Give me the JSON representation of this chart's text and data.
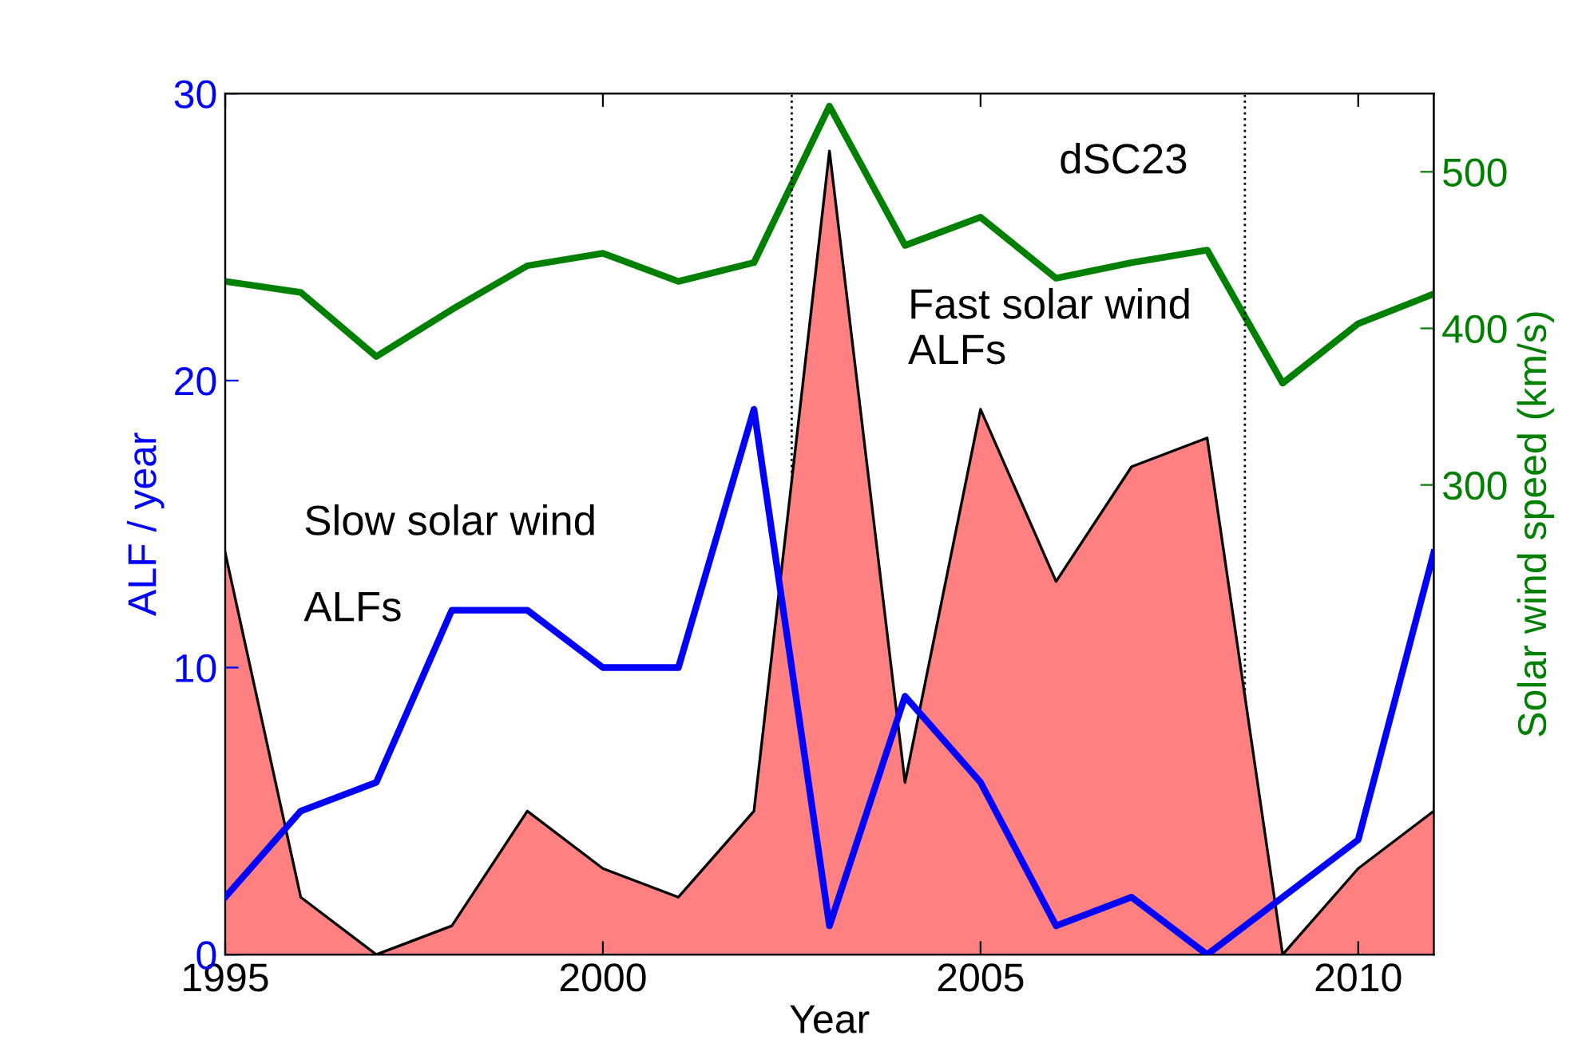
{
  "chart_data": {
    "type": "line",
    "xlabel": "Year",
    "ylabel": "ALF / year",
    "y2label": "Solar wind speed (km/s)",
    "x": [
      1995,
      1996,
      1997,
      1998,
      1999,
      2000,
      2001,
      2002,
      2003,
      2004,
      2005,
      2006,
      2007,
      2008,
      2009,
      2010,
      2011
    ],
    "xlim": [
      1995,
      2011
    ],
    "xticks": [
      1995,
      2000,
      2005,
      2010
    ],
    "ylim": [
      0,
      30
    ],
    "yticks": [
      0,
      10,
      20,
      30
    ],
    "y2lim": [
      0,
      550
    ],
    "y2ticks": [
      300,
      400,
      500
    ],
    "series": [
      {
        "type": "area",
        "color": "#ff8080",
        "values": [
          14,
          2,
          0,
          1,
          5,
          3,
          2,
          5,
          28,
          6,
          19,
          13,
          17,
          18,
          0,
          3,
          5
        ]
      },
      {
        "color": "#0000ff",
        "values": [
          2,
          5,
          6,
          12,
          12,
          10,
          10,
          19,
          1,
          9,
          6,
          1,
          2,
          0,
          2,
          4,
          14
        ]
      },
      {
        "type": "line",
        "axis": "y2",
        "color": "#008000",
        "values": [
          430,
          423,
          382,
          412,
          440,
          448,
          430,
          442,
          542,
          453,
          471,
          432,
          442,
          450,
          365,
          403,
          422
        ]
      }
    ],
    "ref_lines": [
      {
        "axis": "x",
        "value": 2002.5,
        "color": "#000000",
        "line_style": "dotted"
      },
      {
        "axis": "x",
        "value": 2008.5,
        "color": "#000000",
        "line_style": "dotted"
      }
    ],
    "annotations": [
      "dSC23",
      "Fast solar wind\nALFs",
      "Slow solar wind",
      "ALFs"
    ],
    "grid": false,
    "legend": false,
    "marker": "none",
    "line_style": "solid"
  }
}
